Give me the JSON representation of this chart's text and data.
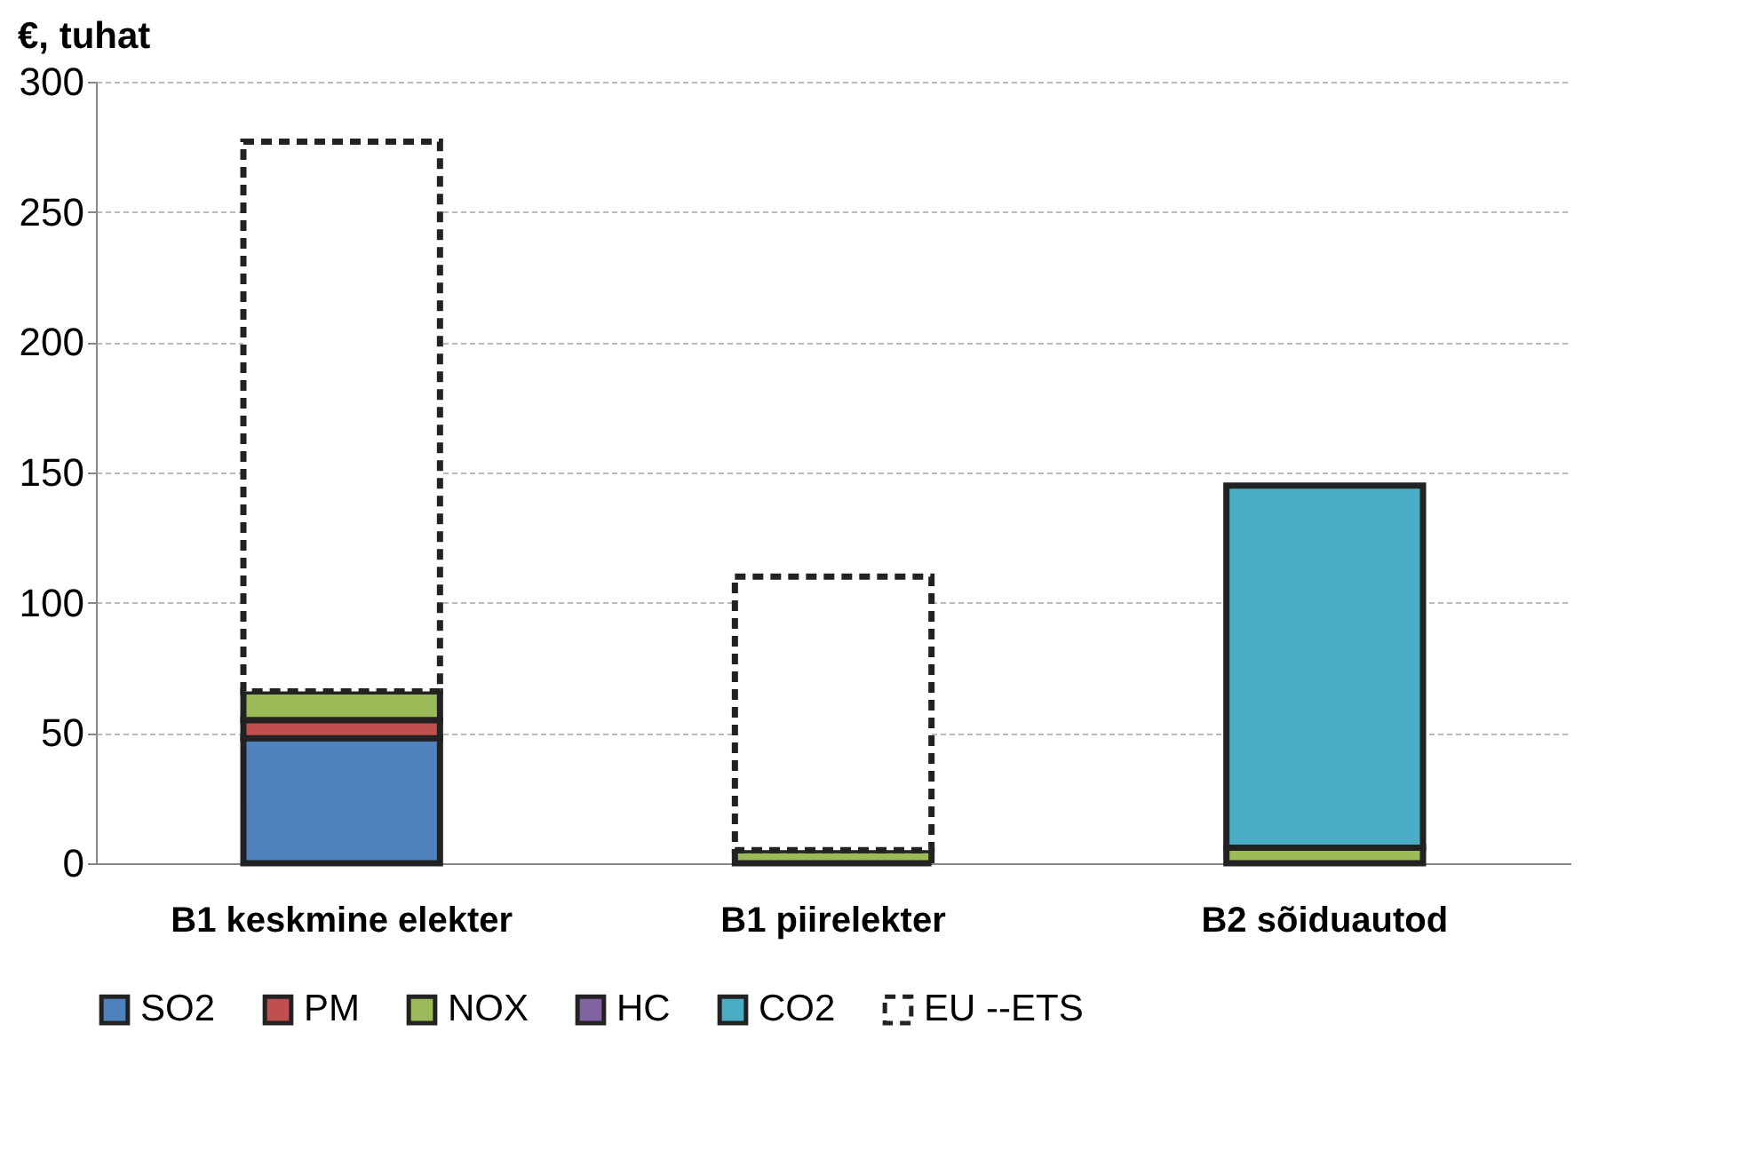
{
  "chart_data": {
    "type": "bar",
    "stacked": true,
    "ylabel": "€, tuhat",
    "categories": [
      "B1 keskmine elekter",
      "B1 piirelekter",
      "B2 sõiduautod"
    ],
    "series": [
      {
        "name": "SO2",
        "color": "#4f81bd",
        "values": [
          48,
          null,
          null
        ]
      },
      {
        "name": "PM",
        "color": "#c0504d",
        "values": [
          7,
          null,
          null
        ]
      },
      {
        "name": "NOX",
        "color": "#9bbb59",
        "values": [
          11,
          5,
          6
        ]
      },
      {
        "name": "HC",
        "color": "#8064a2",
        "values": [
          null,
          null,
          null
        ]
      },
      {
        "name": "CO2",
        "color": "#4bacc6",
        "values": [
          null,
          null,
          139
        ]
      },
      {
        "name": "EU --ETS",
        "color": "#ffffff",
        "line_style": "dashed",
        "values": [
          211,
          105,
          null
        ]
      }
    ],
    "ylim": [
      0,
      300
    ],
    "yticks": [
      0,
      50,
      100,
      150,
      200,
      250,
      300
    ],
    "grid": "y",
    "legend": "bottom"
  }
}
